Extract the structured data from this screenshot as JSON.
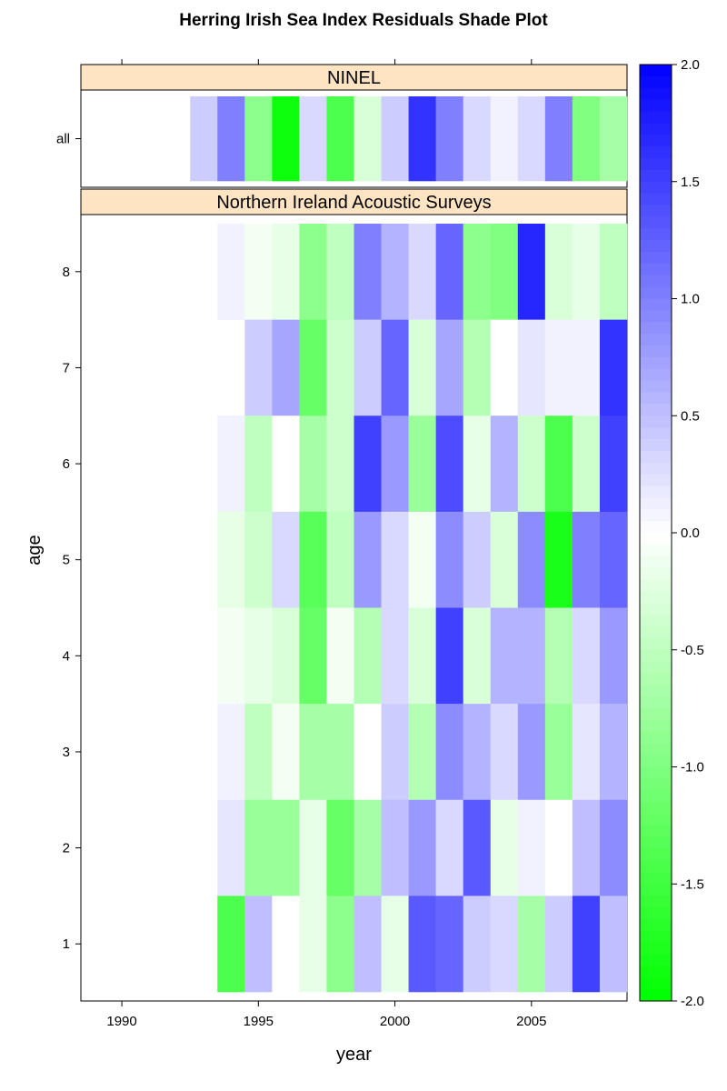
{
  "chart_data": {
    "type": "heatmap",
    "title": "Herring Irish Sea Index Residuals Shade Plot",
    "xlabel": "year",
    "ylabel": "age",
    "x_ticks": [
      1990,
      1995,
      2000,
      2005
    ],
    "x_range": [
      1988.5,
      2008.5
    ],
    "colorbar": {
      "ticks": [
        "2.0",
        "1.5",
        "1.0",
        "0.5",
        "0.0",
        "-0.5",
        "-1.0",
        "-1.5",
        "-2.0"
      ],
      "range": [
        -2.0,
        2.0
      ],
      "low_color": "#00ff00",
      "mid_color": "#ffffff",
      "high_color": "#0000ff"
    },
    "panels": [
      {
        "name": "NINEL",
        "y_ticks": [
          "all"
        ],
        "rows": [
          {
            "label": "all",
            "years": [
              1993,
              1994,
              1995,
              1996,
              1997,
              1998,
              1999,
              2000,
              2001,
              2002,
              2003,
              2004,
              2005,
              2006,
              2007,
              2008
            ],
            "values": [
              0.4,
              1.0,
              -0.9,
              -1.9,
              0.3,
              -1.4,
              -0.3,
              0.4,
              1.6,
              1.0,
              0.3,
              0.1,
              0.3,
              1.0,
              -1.0,
              -0.7
            ]
          }
        ]
      },
      {
        "name": "Northern Ireland Acoustic Surveys",
        "y_ticks": [
          "1",
          "2",
          "3",
          "4",
          "5",
          "6",
          "7",
          "8"
        ],
        "rows": [
          {
            "label": "8",
            "years": [
              1994,
              1995,
              1996,
              1997,
              1998,
              1999,
              2000,
              2001,
              2002,
              2003,
              2004,
              2005,
              2006,
              2007,
              2008
            ],
            "values": [
              0.1,
              -0.1,
              -0.2,
              -0.9,
              -0.5,
              1.0,
              0.6,
              0.3,
              1.2,
              -0.9,
              -1.0,
              1.7,
              -0.3,
              -0.2,
              -0.5
            ]
          },
          {
            "label": "7",
            "years": [
              1995,
              1996,
              1997,
              1998,
              1999,
              2000,
              2001,
              2002,
              2003,
              2004,
              2005,
              2006,
              2007,
              2008
            ],
            "values": [
              0.4,
              0.7,
              -1.2,
              -0.4,
              0.4,
              1.2,
              -0.3,
              0.7,
              -0.6,
              0.0,
              0.2,
              0.1,
              0.1,
              1.6
            ]
          },
          {
            "label": "6",
            "years": [
              1994,
              1995,
              1996,
              1997,
              1998,
              1999,
              2000,
              2001,
              2002,
              2003,
              2004,
              2005,
              2006,
              2007,
              2008
            ],
            "values": [
              0.1,
              -0.5,
              0.0,
              -0.7,
              -0.4,
              1.5,
              0.8,
              -0.8,
              1.4,
              -0.2,
              0.6,
              -0.4,
              -1.4,
              -0.4,
              1.5
            ]
          },
          {
            "label": "5",
            "years": [
              1994,
              1995,
              1996,
              1997,
              1998,
              1999,
              2000,
              2001,
              2002,
              2003,
              2004,
              2005,
              2006,
              2007,
              2008
            ],
            "values": [
              -0.2,
              -0.4,
              0.3,
              -1.3,
              -0.5,
              0.8,
              0.3,
              -0.1,
              0.9,
              0.4,
              -0.3,
              0.9,
              -1.8,
              1.0,
              1.2
            ]
          },
          {
            "label": "4",
            "years": [
              1994,
              1995,
              1996,
              1997,
              1998,
              1999,
              2000,
              2001,
              2002,
              2003,
              2004,
              2005,
              2006,
              2007,
              2008
            ],
            "values": [
              -0.1,
              -0.2,
              -0.3,
              -1.2,
              -0.1,
              -0.6,
              0.3,
              -0.3,
              1.5,
              -0.3,
              0.6,
              0.6,
              -0.6,
              0.3,
              0.8
            ]
          },
          {
            "label": "3",
            "years": [
              1994,
              1995,
              1996,
              1997,
              1998,
              1999,
              2000,
              2001,
              2002,
              2003,
              2004,
              2005,
              2006,
              2007,
              2008
            ],
            "values": [
              0.1,
              -0.5,
              -0.1,
              -0.7,
              -0.7,
              0.0,
              0.4,
              -0.6,
              0.9,
              0.6,
              0.3,
              0.8,
              -0.8,
              0.2,
              0.6
            ]
          },
          {
            "label": "2",
            "years": [
              1994,
              1995,
              1996,
              1997,
              1998,
              1999,
              2000,
              2001,
              2002,
              2003,
              2004,
              2005,
              2006,
              2007,
              2008
            ],
            "values": [
              0.2,
              -0.8,
              -0.8,
              -0.2,
              -1.2,
              -0.7,
              0.5,
              0.8,
              0.3,
              1.3,
              -0.2,
              0.1,
              0.0,
              0.5,
              0.9
            ]
          },
          {
            "label": "1",
            "years": [
              1994,
              1995,
              1996,
              1997,
              1998,
              1999,
              2000,
              2001,
              2002,
              2003,
              2004,
              2005,
              2006,
              2007,
              2008
            ],
            "values": [
              -1.4,
              0.5,
              0.0,
              -0.2,
              -0.9,
              0.5,
              -0.2,
              1.3,
              1.2,
              0.4,
              0.3,
              -0.7,
              0.4,
              1.5,
              0.5
            ]
          }
        ]
      }
    ]
  }
}
